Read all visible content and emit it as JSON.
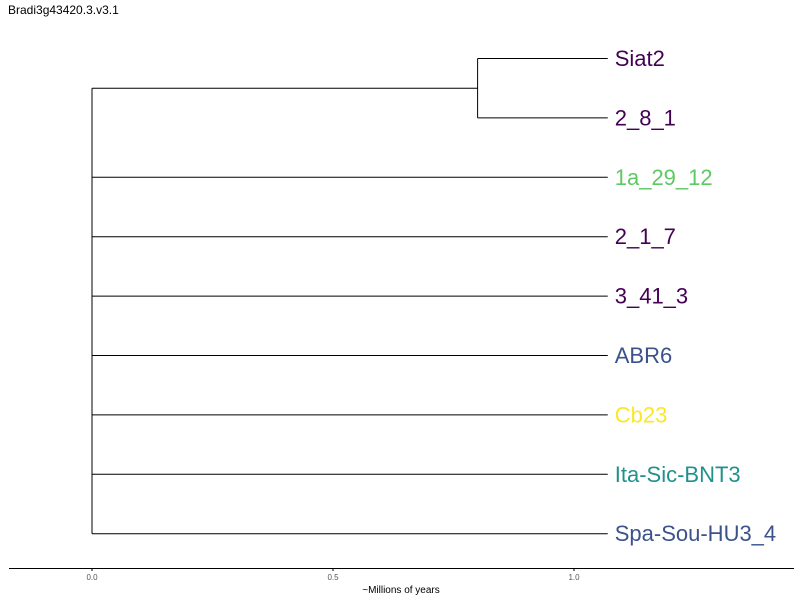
{
  "title": "Bradi3g43420.3.v3.1",
  "axis": {
    "label": "~Millions of years",
    "range": [
      0.0,
      1.0
    ],
    "ticks": [
      "0.0",
      "0.5",
      "1.0"
    ]
  },
  "tree": {
    "root_age": 0.0,
    "internal_nodes": [
      {
        "id": "root",
        "x": 0.0,
        "children": [
          "clade_a",
          "1a_29_12",
          "2_1_7",
          "3_41_3",
          "ABR6",
          "Cb23",
          "Ita-Sic-BNT3",
          "Spa-Sou-HU3_4"
        ]
      },
      {
        "id": "clade_a",
        "x": 0.8,
        "children": [
          "Siat2",
          "2_8_1"
        ]
      }
    ],
    "leaves": [
      {
        "name": "Siat2",
        "color": "#440154"
      },
      {
        "name": "2_8_1",
        "color": "#440154"
      },
      {
        "name": "1a_29_12",
        "color": "#5ec962"
      },
      {
        "name": "2_1_7",
        "color": "#440154"
      },
      {
        "name": "3_41_3",
        "color": "#440154"
      },
      {
        "name": "ABR6",
        "color": "#3b528b"
      },
      {
        "name": "Cb23",
        "color": "#fde725"
      },
      {
        "name": "Ita-Sic-BNT3",
        "color": "#21918c"
      },
      {
        "name": "Spa-Sou-HU3_4",
        "color": "#3b528b"
      }
    ],
    "leaf_x": 1.07
  }
}
